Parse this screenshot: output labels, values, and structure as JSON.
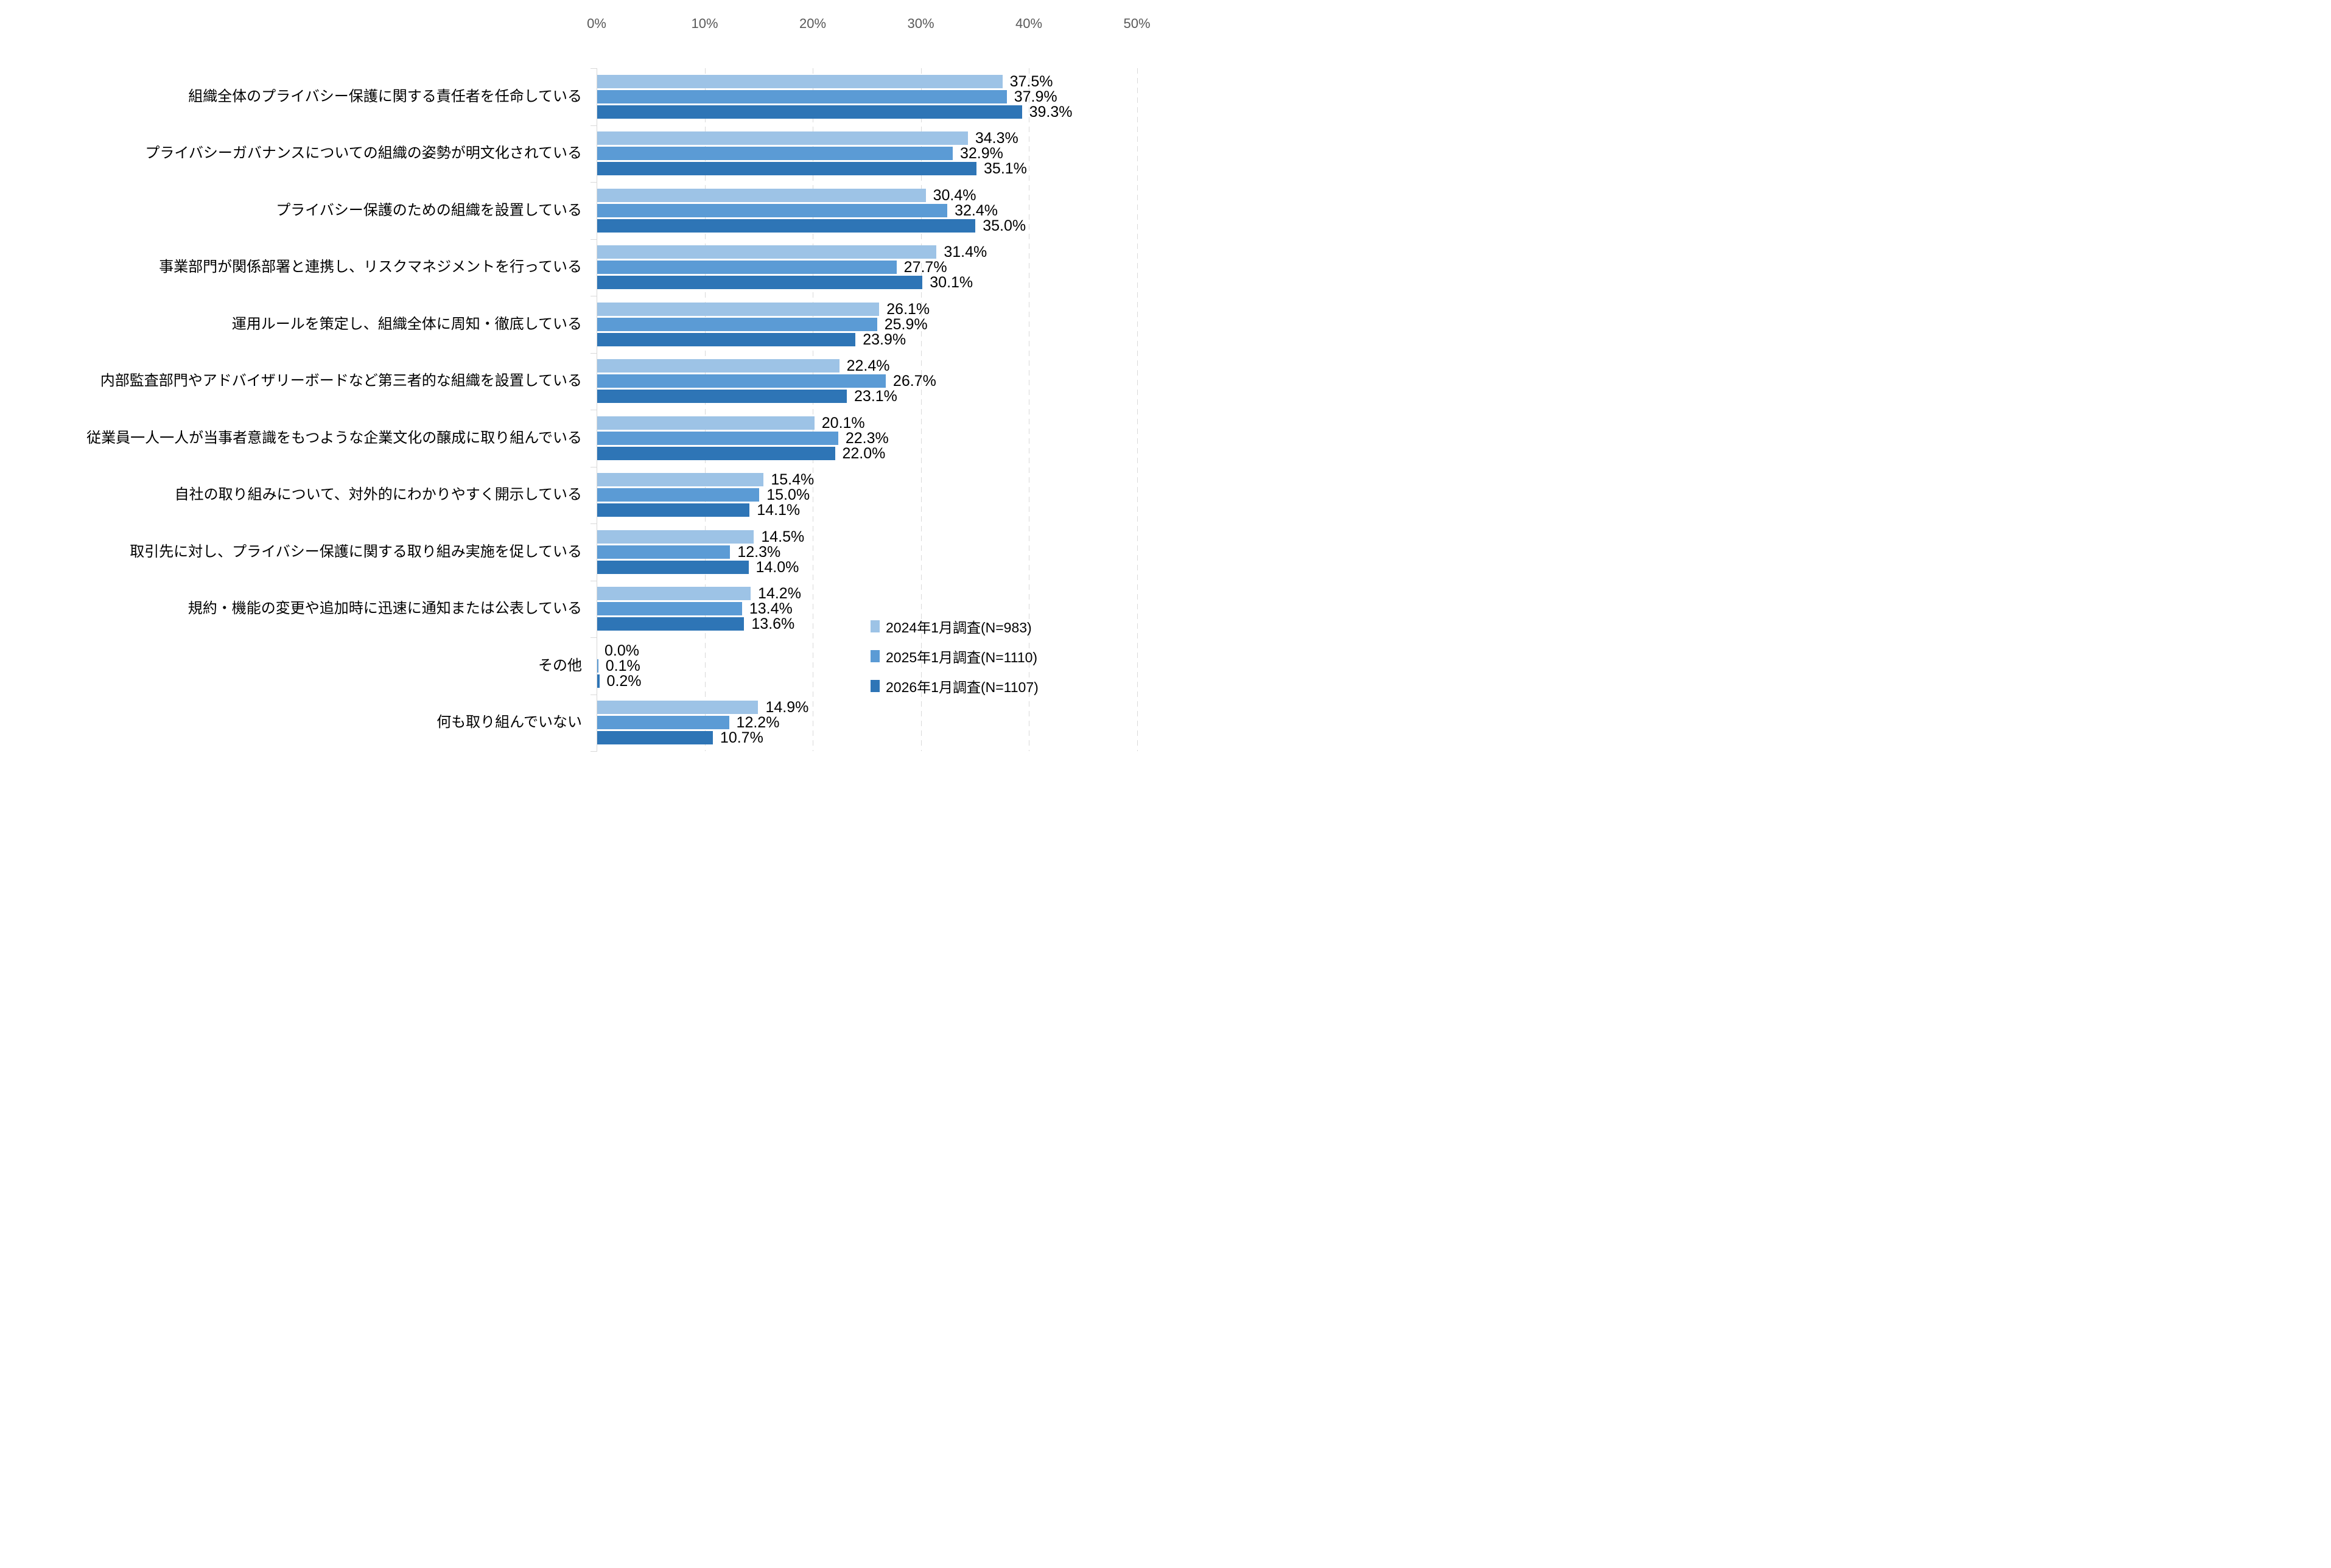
{
  "chart_data": {
    "type": "bar",
    "orientation": "horizontal",
    "title": "",
    "categories": [
      "組織全体のプライバシー保護に関する責任者を任命している",
      "プライバシーガバナンスについての組織の姿勢が明文化されている",
      "プライバシー保護のための組織を設置している",
      "事業部門が関係部署と連携し、リスクマネジメントを行っている",
      "運用ルールを策定し、組織全体に周知・徹底している",
      "内部監査部門やアドバイザリーボードなど第三者的な組織を設置している",
      "従業員一人一人が当事者意識をもつような企業文化の醸成に取り組んでいる",
      "自社の取り組みについて、対外的にわかりやすく開示している",
      "取引先に対し、プライバシー保護に関する取り組み実施を促している",
      "規約・機能の変更や追加時に迅速に通知または公表している",
      "その他",
      "何も取り組んでいない"
    ],
    "series": [
      {
        "name": "2024年1月調査(N=983)",
        "color": "#9DC3E6",
        "values": [
          37.5,
          34.3,
          30.4,
          31.4,
          26.1,
          22.4,
          20.1,
          15.4,
          14.5,
          14.2,
          0.0,
          14.9
        ]
      },
      {
        "name": "2025年1月調査(N=1110)",
        "color": "#5B9BD5",
        "values": [
          37.9,
          32.9,
          32.4,
          27.7,
          25.9,
          26.7,
          22.3,
          15.0,
          12.3,
          13.4,
          0.1,
          12.2
        ]
      },
      {
        "name": "2026年1月調査(N=1107)",
        "color": "#2E75B6",
        "values": [
          39.3,
          35.1,
          35.0,
          30.1,
          23.9,
          23.1,
          22.0,
          14.1,
          14.0,
          13.6,
          0.2,
          10.7
        ]
      }
    ],
    "x_axis": {
      "tick_labels": [
        "0%",
        "10%",
        "20%",
        "30%",
        "40%",
        "50%"
      ],
      "min": 0,
      "max": 50,
      "tick_interval": 10
    },
    "value_label_format": "0.0%",
    "grid": "vertical-dashed",
    "legend_position": "inside-lower-right",
    "colors": {
      "gridline": "#D9D9D9",
      "axis_line": "#D6D6D6",
      "axis_tick_text": "#595959",
      "label_text": "#000000",
      "background": "#FFFFFF"
    }
  }
}
